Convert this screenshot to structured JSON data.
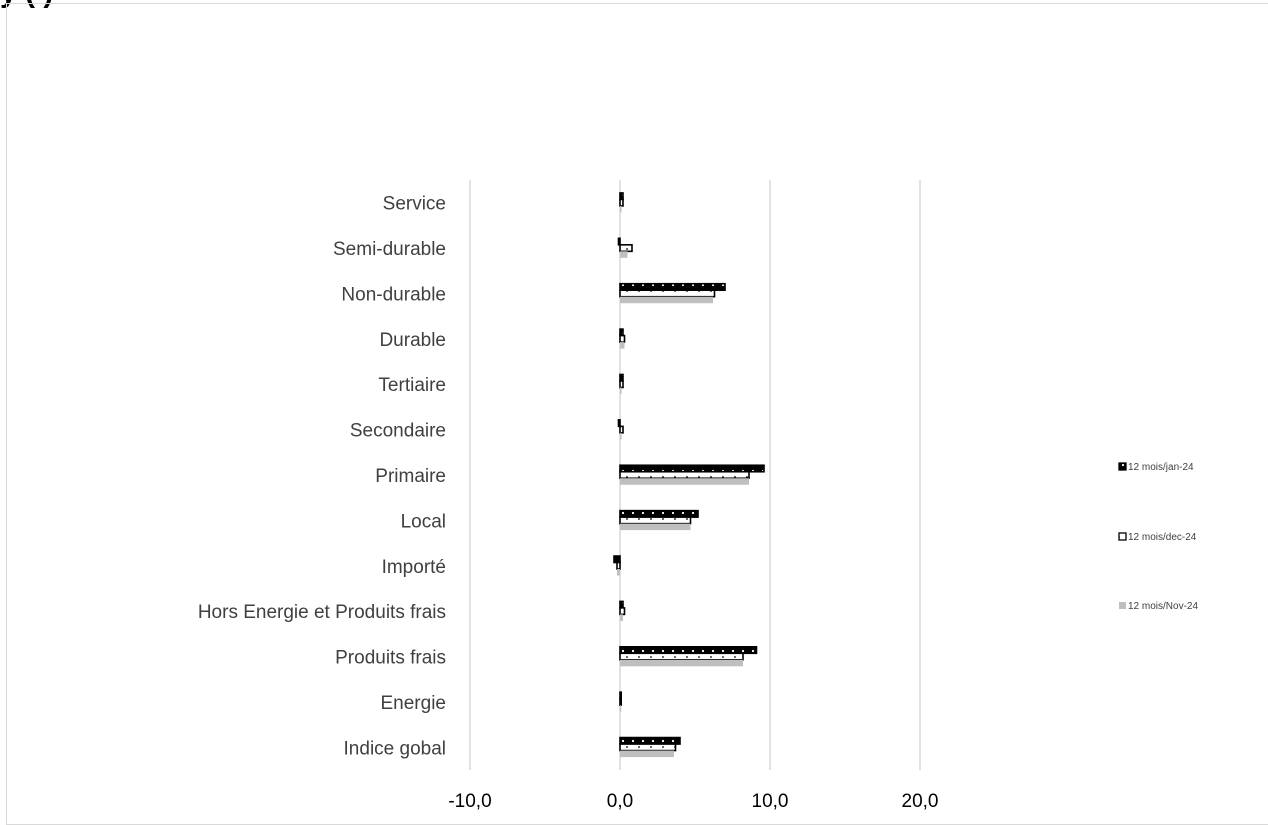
{
  "title_fragment": "y (   )",
  "chart_data": {
    "type": "bar",
    "orientation": "horizontal",
    "categories": [
      "Indice gobal",
      "Energie",
      "Produits frais",
      "Hors Energie et Produits frais",
      "Importé",
      "Local",
      "Primaire",
      "Secondaire",
      "Tertiaire",
      "Durable",
      "Non-durable",
      "Semi-durable",
      "Service"
    ],
    "series": [
      {
        "name": "12 mois/jan-24",
        "values": [
          4.0,
          0.0,
          9.1,
          0.2,
          -0.4,
          5.2,
          9.6,
          -0.1,
          0.2,
          0.2,
          7.0,
          -0.1,
          0.2
        ],
        "color": "#000000",
        "pattern": "dots-on-black"
      },
      {
        "name": "12 mois/dec-24",
        "values": [
          3.7,
          0.0,
          8.2,
          0.3,
          -0.2,
          4.7,
          8.6,
          0.2,
          0.2,
          0.3,
          6.3,
          0.8,
          0.2
        ],
        "color": "#ffffff",
        "pattern": "dots-on-white"
      },
      {
        "name": "12 mois/Nov-24",
        "values": [
          3.6,
          0.0,
          8.2,
          0.2,
          -0.2,
          4.7,
          8.6,
          0.1,
          0.1,
          0.3,
          6.2,
          0.5,
          0.1
        ],
        "color": "#bfbfbf",
        "pattern": "solid"
      }
    ],
    "xlim": [
      -10,
      20
    ],
    "xticks": [
      -10,
      0,
      10,
      20
    ],
    "xtick_labels": [
      "-10,0",
      "0,0",
      "10,0",
      "20,0"
    ],
    "grid": true,
    "legend_position": "right"
  }
}
